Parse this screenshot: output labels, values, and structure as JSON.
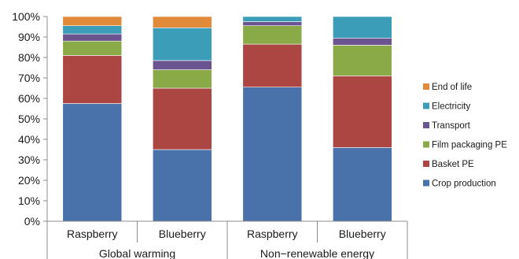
{
  "chart_data": {
    "type": "bar",
    "stacked": true,
    "ylim": [
      0,
      100
    ],
    "ytick_step": 10,
    "ytick_suffix": "%",
    "categories": [
      "Raspberry",
      "Blueberry",
      "Raspberry",
      "Blueberry"
    ],
    "groups": [
      {
        "label": "Global warming",
        "categories": [
          0,
          1
        ]
      },
      {
        "label": "Non−renewable energy",
        "categories": [
          2,
          3
        ]
      }
    ],
    "series": [
      {
        "name": "Crop production",
        "color": "#4a72aa",
        "values": [
          57.5,
          35,
          65.5,
          36
        ]
      },
      {
        "name": "Basket PE",
        "color": "#ac4643",
        "values": [
          23.5,
          30,
          21,
          35
        ]
      },
      {
        "name": "Film packaging PE",
        "color": "#8aaa48",
        "values": [
          7,
          9,
          9,
          15
        ]
      },
      {
        "name": "Transport",
        "color": "#6b5590",
        "values": [
          3.5,
          4.5,
          2,
          3.5
        ]
      },
      {
        "name": "Electricity",
        "color": "#3c9db8",
        "values": [
          4,
          16,
          2.5,
          10.5
        ]
      },
      {
        "name": "End of life",
        "color": "#e08a3a",
        "values": [
          4.5,
          5.5,
          0,
          0
        ]
      }
    ],
    "legend_position": "right",
    "grid": false
  }
}
